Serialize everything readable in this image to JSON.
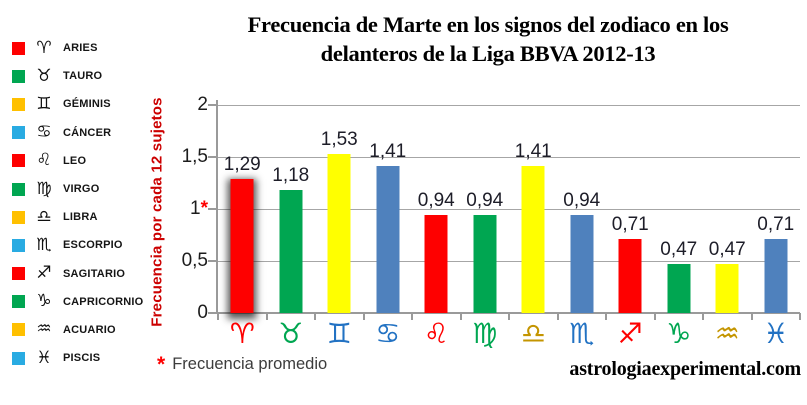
{
  "title": {
    "line1": "Frecuencia de Marte en los signos del zodiaco en los",
    "line2": "delanteros de la Liga BBVA 2012-13"
  },
  "legend": {
    "items": [
      {
        "name": "ARIES",
        "glyph": "♈",
        "color": "#fe0000"
      },
      {
        "name": "TAURO",
        "glyph": "♉",
        "color": "#00a651"
      },
      {
        "name": "GÉMINIS",
        "glyph": "♊",
        "color": "#ffc000"
      },
      {
        "name": "CÁNCER",
        "glyph": "♋",
        "color": "#29abe2"
      },
      {
        "name": "LEO",
        "glyph": "♌",
        "color": "#fe0000"
      },
      {
        "name": "VIRGO",
        "glyph": "♍",
        "color": "#00a651"
      },
      {
        "name": "LIBRA",
        "glyph": "♎",
        "color": "#ffc000"
      },
      {
        "name": "ESCORPIO",
        "glyph": "♏",
        "color": "#29abe2"
      },
      {
        "name": "SAGITARIO",
        "glyph": "♐",
        "color": "#fe0000"
      },
      {
        "name": "CAPRICORNIO",
        "glyph": "♑",
        "color": "#00a651"
      },
      {
        "name": "ACUARIO",
        "glyph": "♒",
        "color": "#ffc000"
      },
      {
        "name": "PISCIS",
        "glyph": "♓",
        "color": "#29abe2"
      }
    ]
  },
  "footnote": {
    "marker": "*",
    "text": "Frecuencia promedio"
  },
  "watermark": "astrologiaexperimental.com",
  "chart_data": {
    "type": "bar",
    "title": "Frecuencia de Marte en los signos del zodiaco en los delanteros de la Liga BBVA 2012-13",
    "ylabel": "Frecuencia por cada 12 sujetos",
    "xlabel": "",
    "ylim": [
      0,
      2
    ],
    "grid": true,
    "gridline_step": 0.5,
    "legend_position": "left",
    "y_ticks": [
      {
        "label": "2",
        "value": 2,
        "starred": false
      },
      {
        "label": "1,5",
        "value": 1.5,
        "starred": false
      },
      {
        "label": "1",
        "value": 1,
        "starred": true
      },
      {
        "label": "0,5",
        "value": 0.5,
        "starred": false
      },
      {
        "label": "0",
        "value": 0,
        "starred": false
      }
    ],
    "starred_tick_note": "Frecuencia promedio",
    "categories": [
      "Aries",
      "Tauro",
      "Geminis",
      "Cancer",
      "Leo",
      "Virgo",
      "Libra",
      "Escorpio",
      "Sagitario",
      "Capricornio",
      "Acuario",
      "Piscis"
    ],
    "category_glyphs": [
      "♈",
      "♉",
      "♊",
      "♋",
      "♌",
      "♍",
      "♎",
      "♏",
      "♐",
      "♑",
      "♒",
      "♓"
    ],
    "glyph_colors": [
      "#fe0000",
      "#00a651",
      "#2272c3",
      "#2272c3",
      "#fe0000",
      "#00a651",
      "#c49500",
      "#2272c3",
      "#fe0000",
      "#00a651",
      "#c49500",
      "#2272c3"
    ],
    "values": [
      1.29,
      1.18,
      1.53,
      1.41,
      0.94,
      0.94,
      1.41,
      0.94,
      0.71,
      0.47,
      0.47,
      0.71
    ],
    "value_labels": [
      "1,29",
      "1,18",
      "1,53",
      "1,41",
      "0,94",
      "0,94",
      "1,41",
      "0,94",
      "0,71",
      "0,47",
      "0,47",
      "0,71"
    ],
    "bar_colors": [
      "#fe0000",
      "#00a651",
      "#ffff00",
      "#4f81bd",
      "#fe0000",
      "#00a651",
      "#ffff00",
      "#4f81bd",
      "#fe0000",
      "#00a651",
      "#ffff00",
      "#4f81bd"
    ],
    "highlighted_index": 0
  }
}
